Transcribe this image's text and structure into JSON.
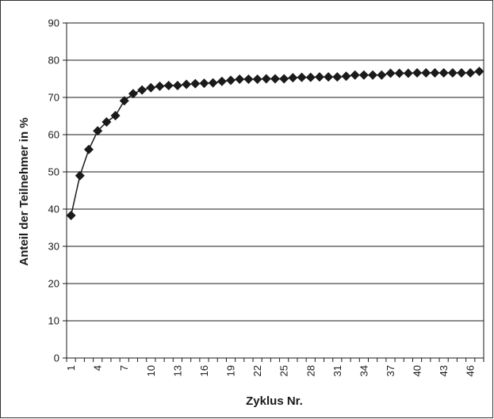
{
  "chart_data": {
    "type": "line",
    "xlabel": "Zyklus Nr.",
    "ylabel": "Anteil der Teilnehmer in %",
    "ylim": [
      0,
      90
    ],
    "yticks": [
      0,
      10,
      20,
      30,
      40,
      50,
      60,
      70,
      80,
      90
    ],
    "xticks": [
      1,
      4,
      7,
      10,
      13,
      16,
      19,
      22,
      25,
      28,
      31,
      34,
      37,
      40,
      43,
      46
    ],
    "grid": "horizontal",
    "marker": "diamond",
    "colors": {
      "line": "#1a1a1a",
      "marker": "#1a1a1a",
      "grid": "#1a1a1a"
    },
    "series": [
      {
        "x": [
          1,
          2,
          3,
          4,
          5,
          6,
          7,
          8,
          9,
          10,
          11,
          12,
          13,
          14,
          15,
          16,
          17,
          18,
          19,
          20,
          21,
          22,
          23,
          24,
          25,
          26,
          27,
          28,
          29,
          30,
          31,
          32,
          33,
          34,
          35,
          36,
          37,
          38,
          39,
          40,
          41,
          42,
          43,
          44,
          45,
          46,
          47
        ],
        "values": [
          38.3,
          49,
          56,
          61,
          63.4,
          65.1,
          69.1,
          71,
          72,
          72.6,
          73,
          73.2,
          73.2,
          73.5,
          73.7,
          73.8,
          73.9,
          74.3,
          74.6,
          74.9,
          74.9,
          74.9,
          75,
          75,
          75,
          75.3,
          75.4,
          75.4,
          75.5,
          75.5,
          75.5,
          75.7,
          76,
          76,
          76,
          76,
          76.5,
          76.5,
          76.5,
          76.6,
          76.6,
          76.6,
          76.6,
          76.6,
          76.6,
          76.6,
          77
        ]
      }
    ]
  }
}
